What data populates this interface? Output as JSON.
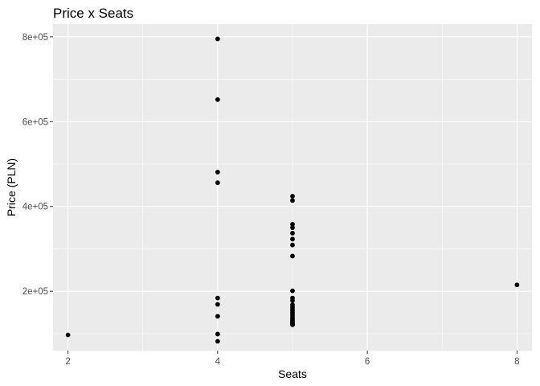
{
  "chart_data": {
    "type": "scatter",
    "title": "Price x Seats",
    "xlabel": "Seats",
    "ylabel": "Price (PLN)",
    "xlim": [
      1.8,
      8.2
    ],
    "ylim": [
      60000,
      830000
    ],
    "x_ticks": [
      2,
      4,
      6,
      8
    ],
    "x_tick_labels": [
      "2",
      "4",
      "6",
      "8"
    ],
    "y_ticks": [
      200000,
      400000,
      600000,
      800000
    ],
    "y_tick_labels": [
      "2e+05",
      "4e+05",
      "6e+05",
      "8e+05"
    ],
    "grid": true,
    "colors": {
      "panel_background": "#ebebeb",
      "grid_major": "#ffffff",
      "point": "#000000",
      "tick_label": "#4d4d4d"
    },
    "x": [
      2,
      4,
      4,
      4,
      4,
      4,
      4,
      4,
      4,
      4,
      5,
      5,
      5,
      5,
      5,
      5,
      5,
      5,
      5,
      5,
      5,
      5,
      5,
      5,
      5,
      5,
      5,
      5,
      5,
      5,
      5,
      5,
      5,
      5,
      5,
      8
    ],
    "y": [
      97000,
      795000,
      652000,
      481000,
      456000,
      184000,
      169000,
      141000,
      99000,
      82000,
      424000,
      414000,
      358000,
      350000,
      337000,
      323000,
      309000,
      283000,
      201000,
      184000,
      178000,
      168000,
      163000,
      158000,
      154000,
      150000,
      146000,
      142000,
      138000,
      134000,
      131000,
      128000,
      125000,
      122000,
      121000,
      215000
    ]
  }
}
